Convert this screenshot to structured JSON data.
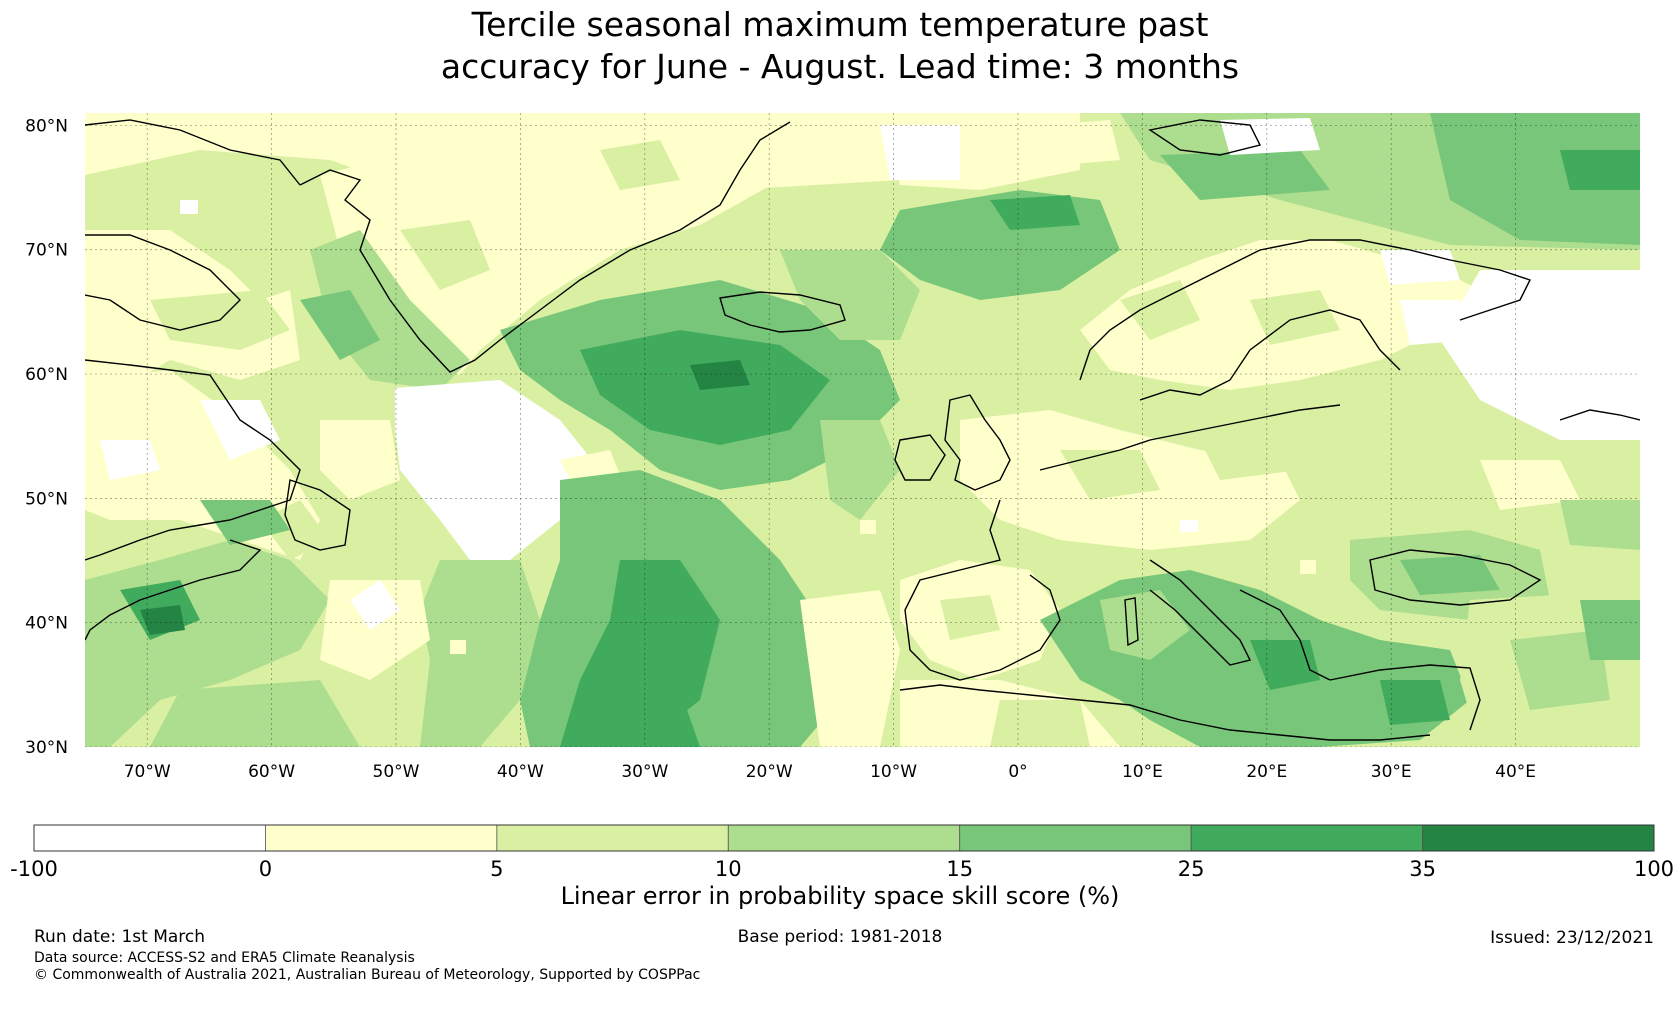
{
  "title_line1": "Tercile seasonal maximum temperature past",
  "title_line2": "accuracy for June - August. Lead time: 3 months",
  "map": {
    "lat_labels": [
      "80°N",
      "70°N",
      "60°N",
      "50°N",
      "40°N",
      "30°N"
    ],
    "lon_labels": [
      "70°W",
      "60°W",
      "50°W",
      "40°W",
      "30°W",
      "20°W",
      "10°W",
      "0°",
      "10°E",
      "20°E",
      "30°E",
      "40°E"
    ],
    "extent": {
      "lon_min": -75,
      "lon_max": 50,
      "lat_min": 30,
      "lat_max": 81
    }
  },
  "colorbar": {
    "bounds": [
      "-100",
      "0",
      "5",
      "10",
      "15",
      "25",
      "35",
      "100"
    ],
    "colors": [
      "#ffffff",
      "#ffffcc",
      "#d9f0a3",
      "#addd8e",
      "#78c679",
      "#41ab5d",
      "#238443"
    ],
    "title": "Linear error in probability space skill score (%)"
  },
  "footer": {
    "run_date": "Run date: 1st March",
    "base_period": "Base period: 1981-2018",
    "issued": "Issued: 23/12/2021",
    "data_source": "Data source: ACCESS-S2 and ERA5 Climate Reanalysis",
    "copyright": "© Commonwealth of Australia 2021, Australian Bureau of Meteorology, Supported by COSPPac"
  }
}
